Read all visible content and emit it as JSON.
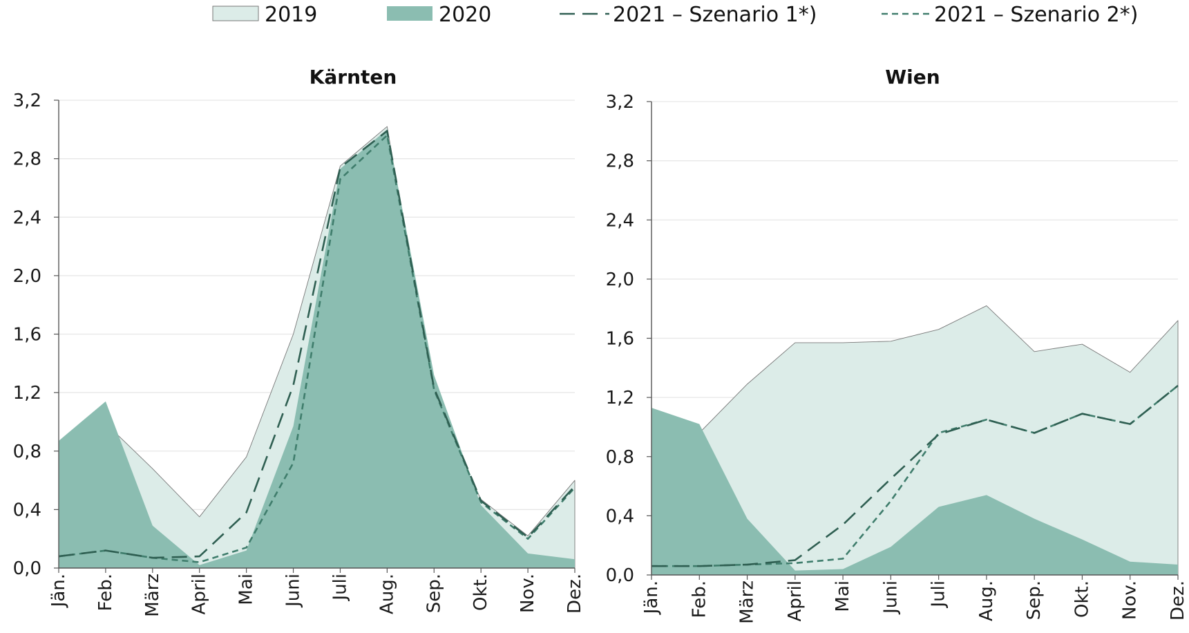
{
  "legend": [
    {
      "key": "2019",
      "label": "2019",
      "style": "area-light"
    },
    {
      "key": "2020",
      "label": "2020",
      "style": "area-dark"
    },
    {
      "key": "s1",
      "label": "2021 – Szenario 1*)",
      "style": "long-dash"
    },
    {
      "key": "s2",
      "label": "2021 – Szenario 2*)",
      "style": "short-dash"
    }
  ],
  "colors": {
    "area_2019": "#dcece8",
    "area_2019_edge": "#777777",
    "area_2020": "#8bbdb1",
    "line_s1": "#2f5f52",
    "line_s2": "#3f7d6c",
    "grid": "#e6e6e6",
    "axis": "#555555"
  },
  "chart_data": [
    {
      "type": "area",
      "title": "Kärnten",
      "categories": [
        "Jän.",
        "Feb.",
        "März",
        "April",
        "Mai",
        "Juni",
        "Juli",
        "Aug.",
        "Sep.",
        "Okt.",
        "Nov.",
        "Dez."
      ],
      "ylim": [
        0,
        3.2
      ],
      "yticks": [
        "0,0",
        "0,4",
        "0,8",
        "1,2",
        "1,6",
        "2,0",
        "2,4",
        "2,8",
        "3,2"
      ],
      "grid": true,
      "legend_position": "top",
      "series": [
        {
          "key": "2019",
          "name": "2019",
          "kind": "area",
          "values": [
            0.84,
            0.99,
            0.68,
            0.35,
            0.76,
            1.6,
            2.75,
            3.02,
            1.13,
            0.47,
            0.22,
            0.6
          ]
        },
        {
          "key": "2020",
          "name": "2020",
          "kind": "area",
          "values": [
            0.87,
            1.14,
            0.29,
            0.02,
            0.12,
            0.97,
            2.73,
            3.0,
            1.32,
            0.43,
            0.1,
            0.06
          ]
        },
        {
          "key": "s1",
          "name": "2021 – Szenario 1*)",
          "kind": "line",
          "values": [
            0.08,
            0.12,
            0.07,
            0.08,
            0.38,
            1.25,
            2.74,
            2.99,
            1.23,
            0.46,
            0.21,
            0.56
          ]
        },
        {
          "key": "s2",
          "name": "2021 – Szenario 2*)",
          "kind": "line",
          "values": [
            0.08,
            0.12,
            0.07,
            0.04,
            0.14,
            0.72,
            2.66,
            2.96,
            1.22,
            0.45,
            0.2,
            0.55
          ]
        }
      ]
    },
    {
      "type": "area",
      "title": "Wien",
      "categories": [
        "Jän.",
        "Feb.",
        "März",
        "April",
        "Mai",
        "Juni",
        "Juli",
        "Aug.",
        "Sep.",
        "Okt.",
        "Nov.",
        "Dez."
      ],
      "ylim": [
        0,
        3.2
      ],
      "yticks": [
        "0,0",
        "0,4",
        "0,8",
        "1,2",
        "1,6",
        "2,0",
        "2,4",
        "2,8",
        "3,2"
      ],
      "grid": true,
      "legend_position": "top",
      "series": [
        {
          "key": "2019",
          "name": "2019",
          "kind": "area",
          "values": [
            1.01,
            0.96,
            1.29,
            1.57,
            1.57,
            1.58,
            1.66,
            1.82,
            1.51,
            1.56,
            1.37,
            1.72
          ]
        },
        {
          "key": "2020",
          "name": "2020",
          "kind": "area",
          "values": [
            1.13,
            1.02,
            0.38,
            0.03,
            0.04,
            0.19,
            0.46,
            0.54,
            0.38,
            0.24,
            0.09,
            0.07
          ]
        },
        {
          "key": "s1",
          "name": "2021 – Szenario 1*)",
          "kind": "line",
          "values": [
            0.06,
            0.06,
            0.07,
            0.1,
            0.34,
            0.65,
            0.95,
            1.05,
            0.96,
            1.09,
            1.02,
            1.28
          ]
        },
        {
          "key": "s2",
          "name": "2021 – Szenario 2*)",
          "kind": "line",
          "values": [
            0.06,
            0.06,
            0.07,
            0.08,
            0.11,
            0.5,
            0.96,
            1.05,
            0.96,
            1.09,
            1.02,
            1.28
          ]
        }
      ]
    }
  ]
}
